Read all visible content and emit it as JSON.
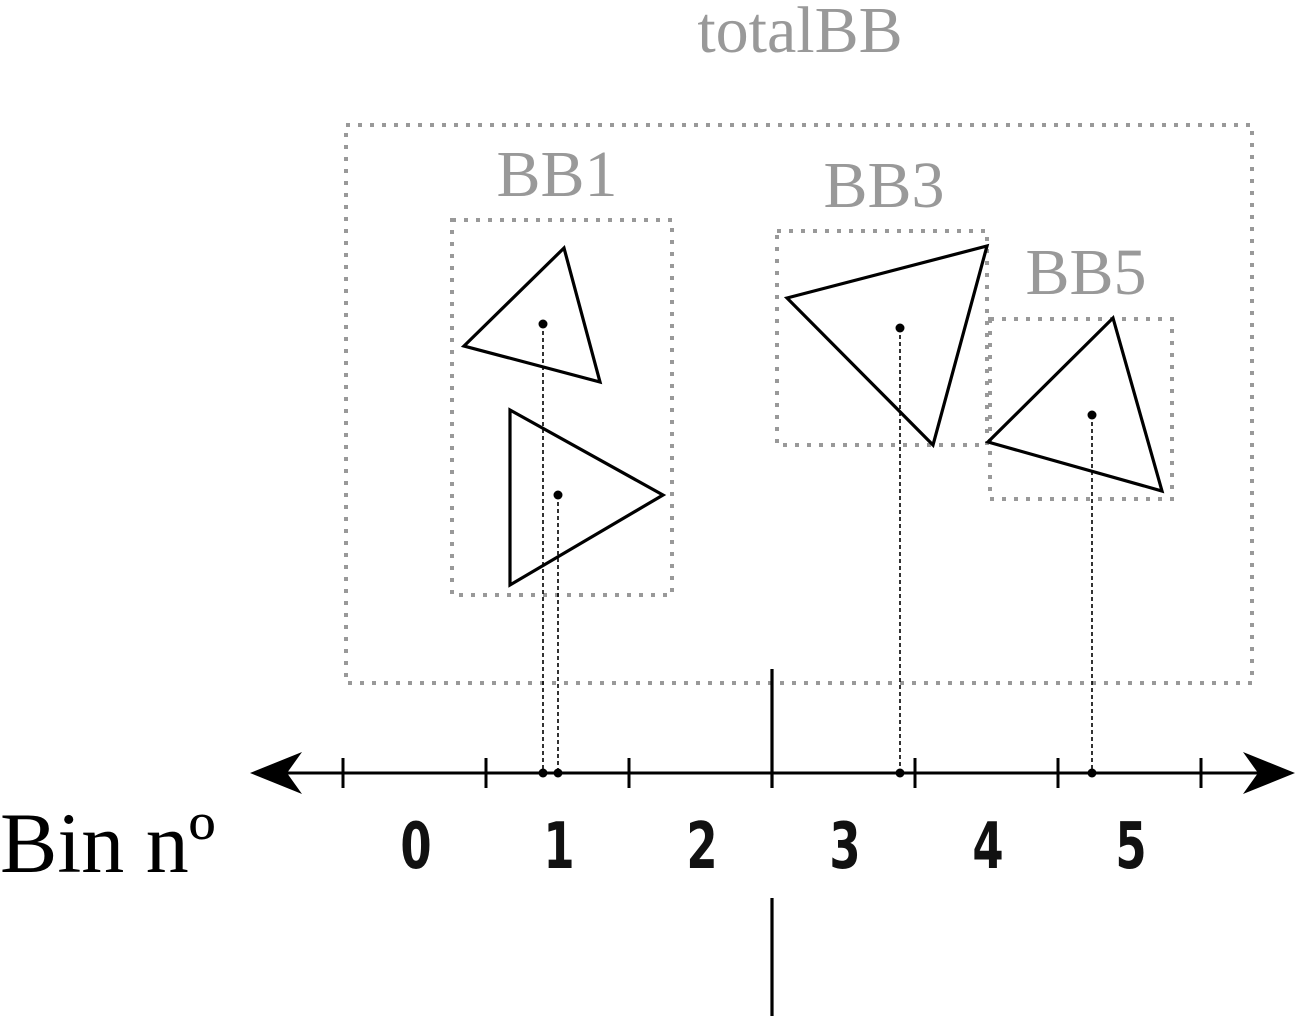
{
  "labels": {
    "total_bb": "totalBB",
    "bb1": "BB1",
    "bb3": "BB3",
    "bb5": "BB5",
    "axis_title": "Bin nº"
  },
  "bins": [
    "0",
    "1",
    "2",
    "3",
    "4",
    "5"
  ],
  "colors": {
    "bounding_box": "#999999",
    "shape_stroke": "#000000",
    "background": "#ffffff"
  }
}
